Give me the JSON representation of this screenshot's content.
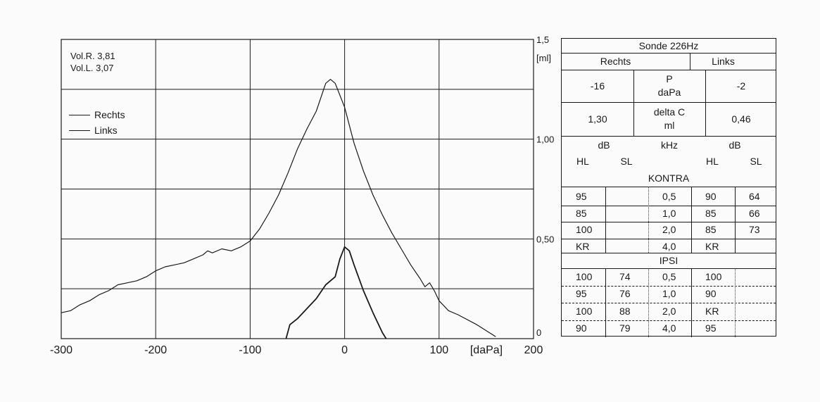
{
  "chart_data": {
    "type": "line",
    "x_ticks": [
      "-300",
      "-200",
      "-100",
      "0",
      "100",
      "200"
    ],
    "x_unit": "[daPa]",
    "y_ticks": [
      "0",
      "0,50",
      "1,00",
      "1,5"
    ],
    "y_unit": "[ml]",
    "xlim": [
      -300,
      200
    ],
    "ylim": [
      0,
      1.5
    ],
    "grid": true,
    "legend_position": "top-left",
    "series": [
      {
        "name": "Rechts",
        "points": [
          [
            -300,
            0.13
          ],
          [
            -290,
            0.14
          ],
          [
            -280,
            0.17
          ],
          [
            -270,
            0.19
          ],
          [
            -260,
            0.22
          ],
          [
            -250,
            0.24
          ],
          [
            -240,
            0.27
          ],
          [
            -230,
            0.28
          ],
          [
            -220,
            0.29
          ],
          [
            -210,
            0.31
          ],
          [
            -200,
            0.34
          ],
          [
            -190,
            0.36
          ],
          [
            -180,
            0.37
          ],
          [
            -170,
            0.38
          ],
          [
            -160,
            0.4
          ],
          [
            -150,
            0.42
          ],
          [
            -145,
            0.44
          ],
          [
            -140,
            0.43
          ],
          [
            -130,
            0.45
          ],
          [
            -120,
            0.44
          ],
          [
            -110,
            0.46
          ],
          [
            -100,
            0.49
          ],
          [
            -90,
            0.55
          ],
          [
            -80,
            0.63
          ],
          [
            -70,
            0.72
          ],
          [
            -60,
            0.83
          ],
          [
            -50,
            0.95
          ],
          [
            -40,
            1.05
          ],
          [
            -30,
            1.14
          ],
          [
            -20,
            1.28
          ],
          [
            -15,
            1.3
          ],
          [
            -10,
            1.28
          ],
          [
            0,
            1.16
          ],
          [
            10,
            0.98
          ],
          [
            20,
            0.84
          ],
          [
            30,
            0.72
          ],
          [
            40,
            0.62
          ],
          [
            50,
            0.53
          ],
          [
            60,
            0.45
          ],
          [
            70,
            0.37
          ],
          [
            80,
            0.3
          ],
          [
            85,
            0.26
          ],
          [
            90,
            0.28
          ],
          [
            95,
            0.24
          ],
          [
            100,
            0.19
          ],
          [
            110,
            0.14
          ],
          [
            120,
            0.12
          ],
          [
            140,
            0.07
          ],
          [
            160,
            0.01
          ]
        ]
      },
      {
        "name": "Links",
        "points": [
          [
            -62,
            0.0
          ],
          [
            -58,
            0.07
          ],
          [
            -50,
            0.1
          ],
          [
            -40,
            0.15
          ],
          [
            -30,
            0.2
          ],
          [
            -20,
            0.27
          ],
          [
            -10,
            0.31
          ],
          [
            -5,
            0.4
          ],
          [
            0,
            0.46
          ],
          [
            5,
            0.44
          ],
          [
            10,
            0.37
          ],
          [
            20,
            0.24
          ],
          [
            30,
            0.13
          ],
          [
            40,
            0.03
          ],
          [
            44,
            0.0
          ]
        ]
      }
    ]
  },
  "info": {
    "vol_r": "Vol.R. 3,81",
    "vol_l": "Vol.L. 3,07"
  },
  "table": {
    "title": "Sonde 226Hz",
    "rechts": "Rechts",
    "links": "Links",
    "p_label": "P",
    "p_unit": "daPa",
    "p_rechts": "-16",
    "p_links": "-2",
    "c_label": "delta C",
    "c_unit": "ml",
    "c_rechts": "1,30",
    "c_links": "0,46",
    "col_db_left": "dB",
    "col_khz": "kHz",
    "col_db_right": "dB",
    "col_hl_left": "HL",
    "col_sl_left": "SL",
    "col_hl_right": "HL",
    "col_sl_right": "SL",
    "kontra_label": "KONTRA",
    "kontra_rows": [
      {
        "hl_r": "95",
        "sl_r": "",
        "khz": "0,5",
        "hl_l": "90",
        "sl_l": "64"
      },
      {
        "hl_r": "85",
        "sl_r": "",
        "khz": "1,0",
        "hl_l": "85",
        "sl_l": "66"
      },
      {
        "hl_r": "100",
        "sl_r": "",
        "khz": "2,0",
        "hl_l": "85",
        "sl_l": "73"
      },
      {
        "hl_r": "KR",
        "sl_r": "",
        "khz": "4,0",
        "hl_l": "KR",
        "sl_l": ""
      }
    ],
    "ipsi_label": "IPSI",
    "ipsi_rows": [
      {
        "hl_r": "100",
        "sl_r": "74",
        "khz": "0,5",
        "hl_l": "100",
        "sl_l": ""
      },
      {
        "hl_r": "95",
        "sl_r": "76",
        "khz": "1,0",
        "hl_l": "90",
        "sl_l": ""
      },
      {
        "hl_r": "100",
        "sl_r": "88",
        "khz": "2,0",
        "hl_l": "KR",
        "sl_l": ""
      },
      {
        "hl_r": "90",
        "sl_r": "79",
        "khz": "4,0",
        "hl_l": "95",
        "sl_l": ""
      }
    ]
  }
}
